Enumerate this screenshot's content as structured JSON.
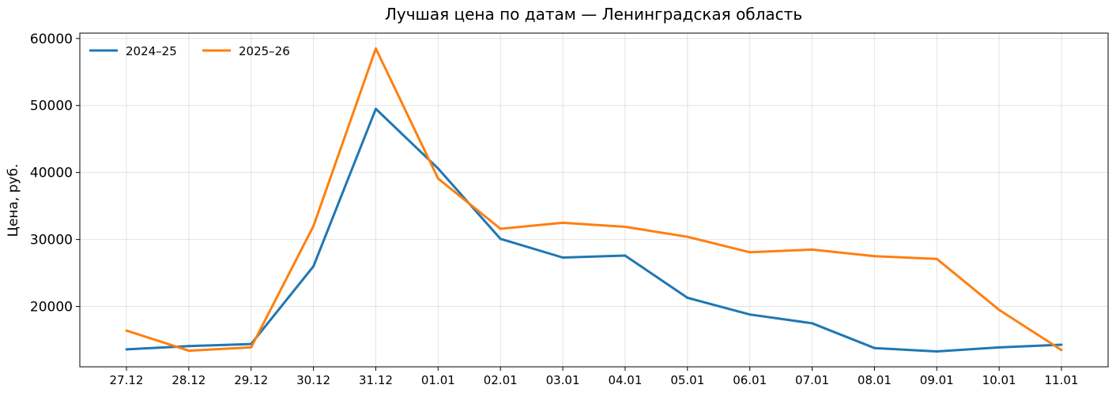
{
  "chart_data": {
    "type": "line",
    "title": "Лучшая цена по датам — Ленинградская область",
    "xlabel": "",
    "ylabel": "Цена, руб.",
    "categories": [
      "27.12",
      "28.12",
      "29.12",
      "30.12",
      "31.12",
      "01.01",
      "02.01",
      "03.01",
      "04.01",
      "05.01",
      "06.01",
      "07.01",
      "08.01",
      "09.01",
      "10.01",
      "11.01"
    ],
    "yticks": [
      20000,
      30000,
      40000,
      50000,
      60000
    ],
    "ylim": [
      11000,
      60800
    ],
    "grid": true,
    "legend_position": "top-left",
    "series": [
      {
        "name": "2024–25",
        "color": "#1f77b4",
        "values": [
          13600,
          14100,
          14400,
          26000,
          49500,
          40600,
          30100,
          27300,
          27600,
          21300,
          18800,
          17500,
          13800,
          13300,
          13900,
          14300
        ]
      },
      {
        "name": "2025–26",
        "color": "#ff7f0e",
        "values": [
          16400,
          13400,
          13900,
          32000,
          58500,
          39100,
          31600,
          32500,
          31900,
          30400,
          28100,
          28500,
          27500,
          27100,
          19500,
          13500
        ]
      }
    ]
  }
}
